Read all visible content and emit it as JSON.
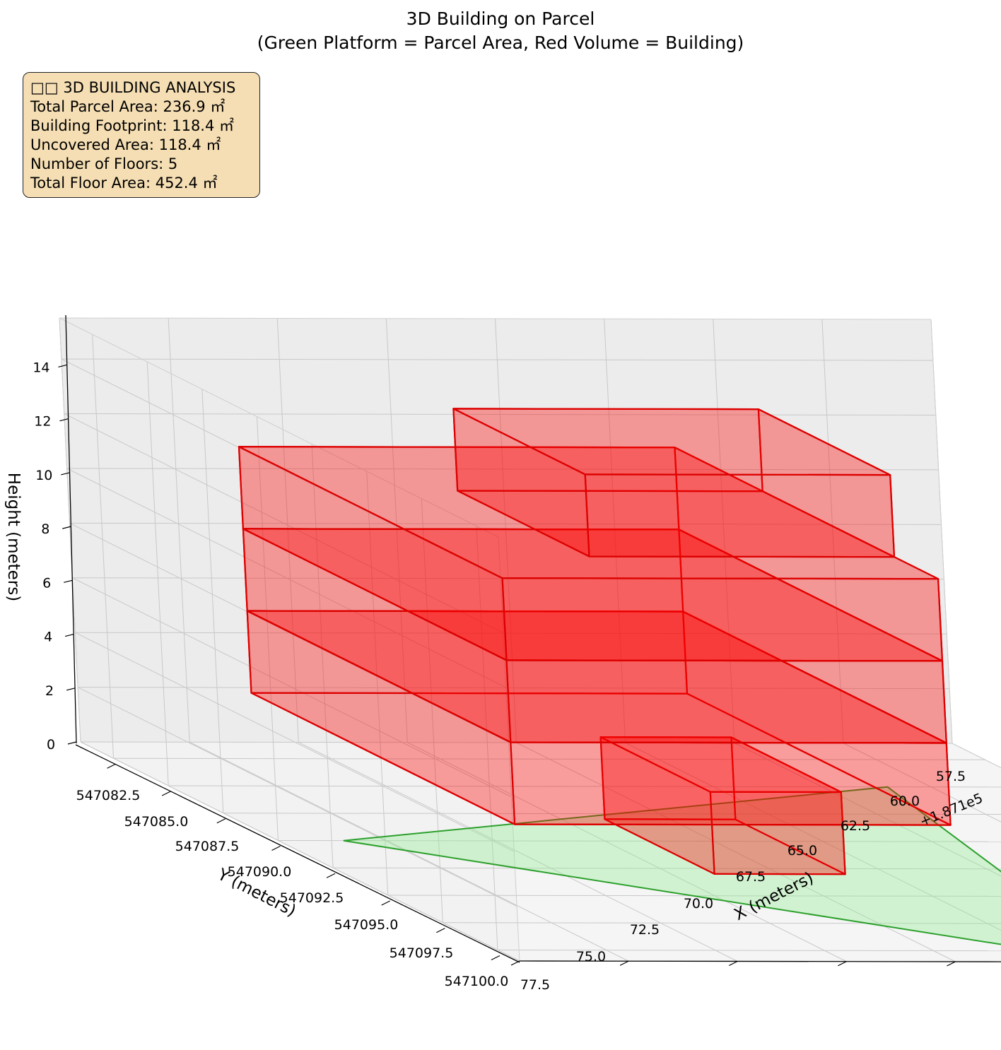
{
  "title_line1": "3D Building on Parcel",
  "title_line2": "(Green Platform = Parcel Area, Red Volume = Building)",
  "info_box": {
    "heading": "□□ 3D BUILDING ANALYSIS",
    "lines": [
      "Total Parcel Area: 236.9 ㎡",
      "Building Footprint: 118.4 ㎡",
      "Uncovered Area: 118.4 ㎡",
      "Number of Floors: 5",
      "Total Floor Area: 452.4 ㎡"
    ]
  },
  "colors": {
    "parcel_fill": "#90ee90",
    "parcel_edge": "#2ca02c",
    "building_fill": "#ff0000",
    "building_edge": "#dd0000",
    "pane": "#f2f2f2",
    "grid": "#c8c8c8",
    "infobox_bg": "#f5deb3"
  },
  "chart_data": {
    "type": "3d-volume",
    "xlabel": "X (meters)",
    "ylabel": "Y (meters)",
    "zlabel": "Height (meters)",
    "x_offset_text": "+1.871e5",
    "x_ticks": [
      "57.5",
      "60.0",
      "62.5",
      "65.0",
      "67.5",
      "70.0",
      "72.5",
      "75.0",
      "77.5"
    ],
    "y_ticks": [
      "547082.5",
      "547085.0",
      "547087.5",
      "547090.0",
      "547092.5",
      "547095.0",
      "547097.5",
      "547100.0"
    ],
    "z_ticks": [
      "0",
      "2",
      "4",
      "6",
      "8",
      "10",
      "12",
      "14"
    ],
    "view": {
      "elev": 20,
      "azim": 45
    },
    "grid": true,
    "parcel": {
      "corners": [
        [
          187159,
          547090
        ],
        [
          187174,
          547085
        ],
        [
          187172,
          547097
        ],
        [
          187170,
          547100
        ]
      ],
      "z": 0
    },
    "floors": [
      {
        "floor": 1,
        "x": [
          187166,
          187169
        ],
        "y": [
          547088,
          547093
        ],
        "z": [
          0,
          3
        ]
      },
      {
        "floor": 2,
        "x": [
          187160,
          187170
        ],
        "y": [
          547084,
          547096
        ],
        "z": [
          3,
          6
        ]
      },
      {
        "floor": 3,
        "x": [
          187160,
          187170
        ],
        "y": [
          547084,
          547096
        ],
        "z": [
          6,
          9
        ]
      },
      {
        "floor": 4,
        "x": [
          187160,
          187170
        ],
        "y": [
          547084,
          547096
        ],
        "z": [
          9,
          12
        ]
      },
      {
        "floor": 5,
        "x": [
          187163,
          187170
        ],
        "y": [
          547088,
          547094
        ],
        "z": [
          12,
          15
        ]
      }
    ]
  }
}
